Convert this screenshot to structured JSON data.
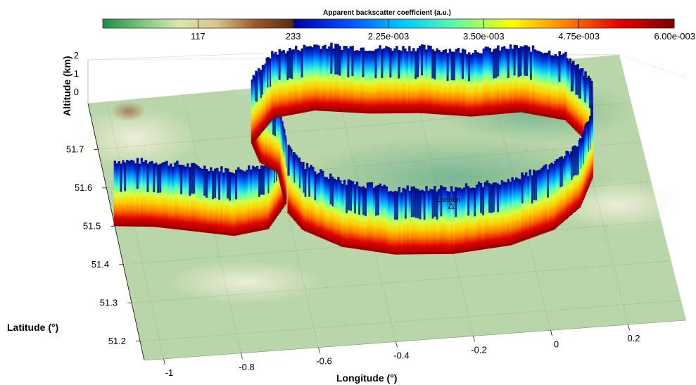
{
  "chart_data": {
    "type": "3d-curtain",
    "colorbar": {
      "title": "Apparent backscatter coefficient (a.u.)",
      "ticks": [
        "117",
        "233",
        "2.25e-003",
        "3.50e-003",
        "4.75e-003",
        "6.00e-003"
      ],
      "colors_terrain": [
        "#1e8a4a",
        "#7bc47a",
        "#d9e8b0",
        "#d8c48a",
        "#9b5a2c",
        "#5a2a10"
      ],
      "colors_jet": [
        "#0000a0",
        "#0050ff",
        "#00c8ff",
        "#60ffa0",
        "#ffff00",
        "#ff8000",
        "#e00000",
        "#7a0000"
      ]
    },
    "xlabel": "Longitude (°)",
    "ylabel": "Latitude (°)",
    "zlabel": "Altitude (km)",
    "x_ticks": [
      "-1",
      "-0.8",
      "-0.6",
      "-0.4",
      "-0.2",
      "0",
      "0.2"
    ],
    "y_ticks": [
      "51.2",
      "51.3",
      "51.4",
      "51.5",
      "51.6",
      "51.7"
    ],
    "z_ticks": [
      "0",
      "1",
      "2"
    ],
    "xlim": [
      -1.05,
      0.35
    ],
    "ylim": [
      51.15,
      51.82
    ],
    "zlim": [
      0,
      2
    ],
    "annotations": [
      {
        "label": "London",
        "lon": -0.12,
        "lat": 51.51
      }
    ],
    "track": [
      {
        "lon": -1.05,
        "lat": 51.5
      },
      {
        "lon": -0.95,
        "lat": 51.49
      },
      {
        "lon": -0.85,
        "lat": 51.47
      },
      {
        "lon": -0.75,
        "lat": 51.45
      },
      {
        "lon": -0.66,
        "lat": 51.46
      },
      {
        "lon": -0.6,
        "lat": 51.52
      },
      {
        "lon": -0.6,
        "lat": 51.6
      },
      {
        "lon": -0.64,
        "lat": 51.63
      },
      {
        "lon": -0.65,
        "lat": 51.68
      },
      {
        "lon": -0.58,
        "lat": 51.74
      },
      {
        "lon": -0.47,
        "lat": 51.75
      },
      {
        "lon": -0.33,
        "lat": 51.73
      },
      {
        "lon": -0.2,
        "lat": 51.72
      },
      {
        "lon": -0.07,
        "lat": 51.7
      },
      {
        "lon": 0.06,
        "lat": 51.7
      },
      {
        "lon": 0.17,
        "lat": 51.67
      },
      {
        "lon": 0.22,
        "lat": 51.6
      },
      {
        "lon": 0.2,
        "lat": 51.52
      },
      {
        "lon": 0.15,
        "lat": 51.45
      },
      {
        "lon": 0.07,
        "lat": 51.4
      },
      {
        "lon": -0.05,
        "lat": 51.37
      },
      {
        "lon": -0.2,
        "lat": 51.36
      },
      {
        "lon": -0.35,
        "lat": 51.37
      },
      {
        "lon": -0.48,
        "lat": 51.4
      },
      {
        "lon": -0.57,
        "lat": 51.45
      },
      {
        "lon": -0.6,
        "lat": 51.5
      }
    ]
  }
}
